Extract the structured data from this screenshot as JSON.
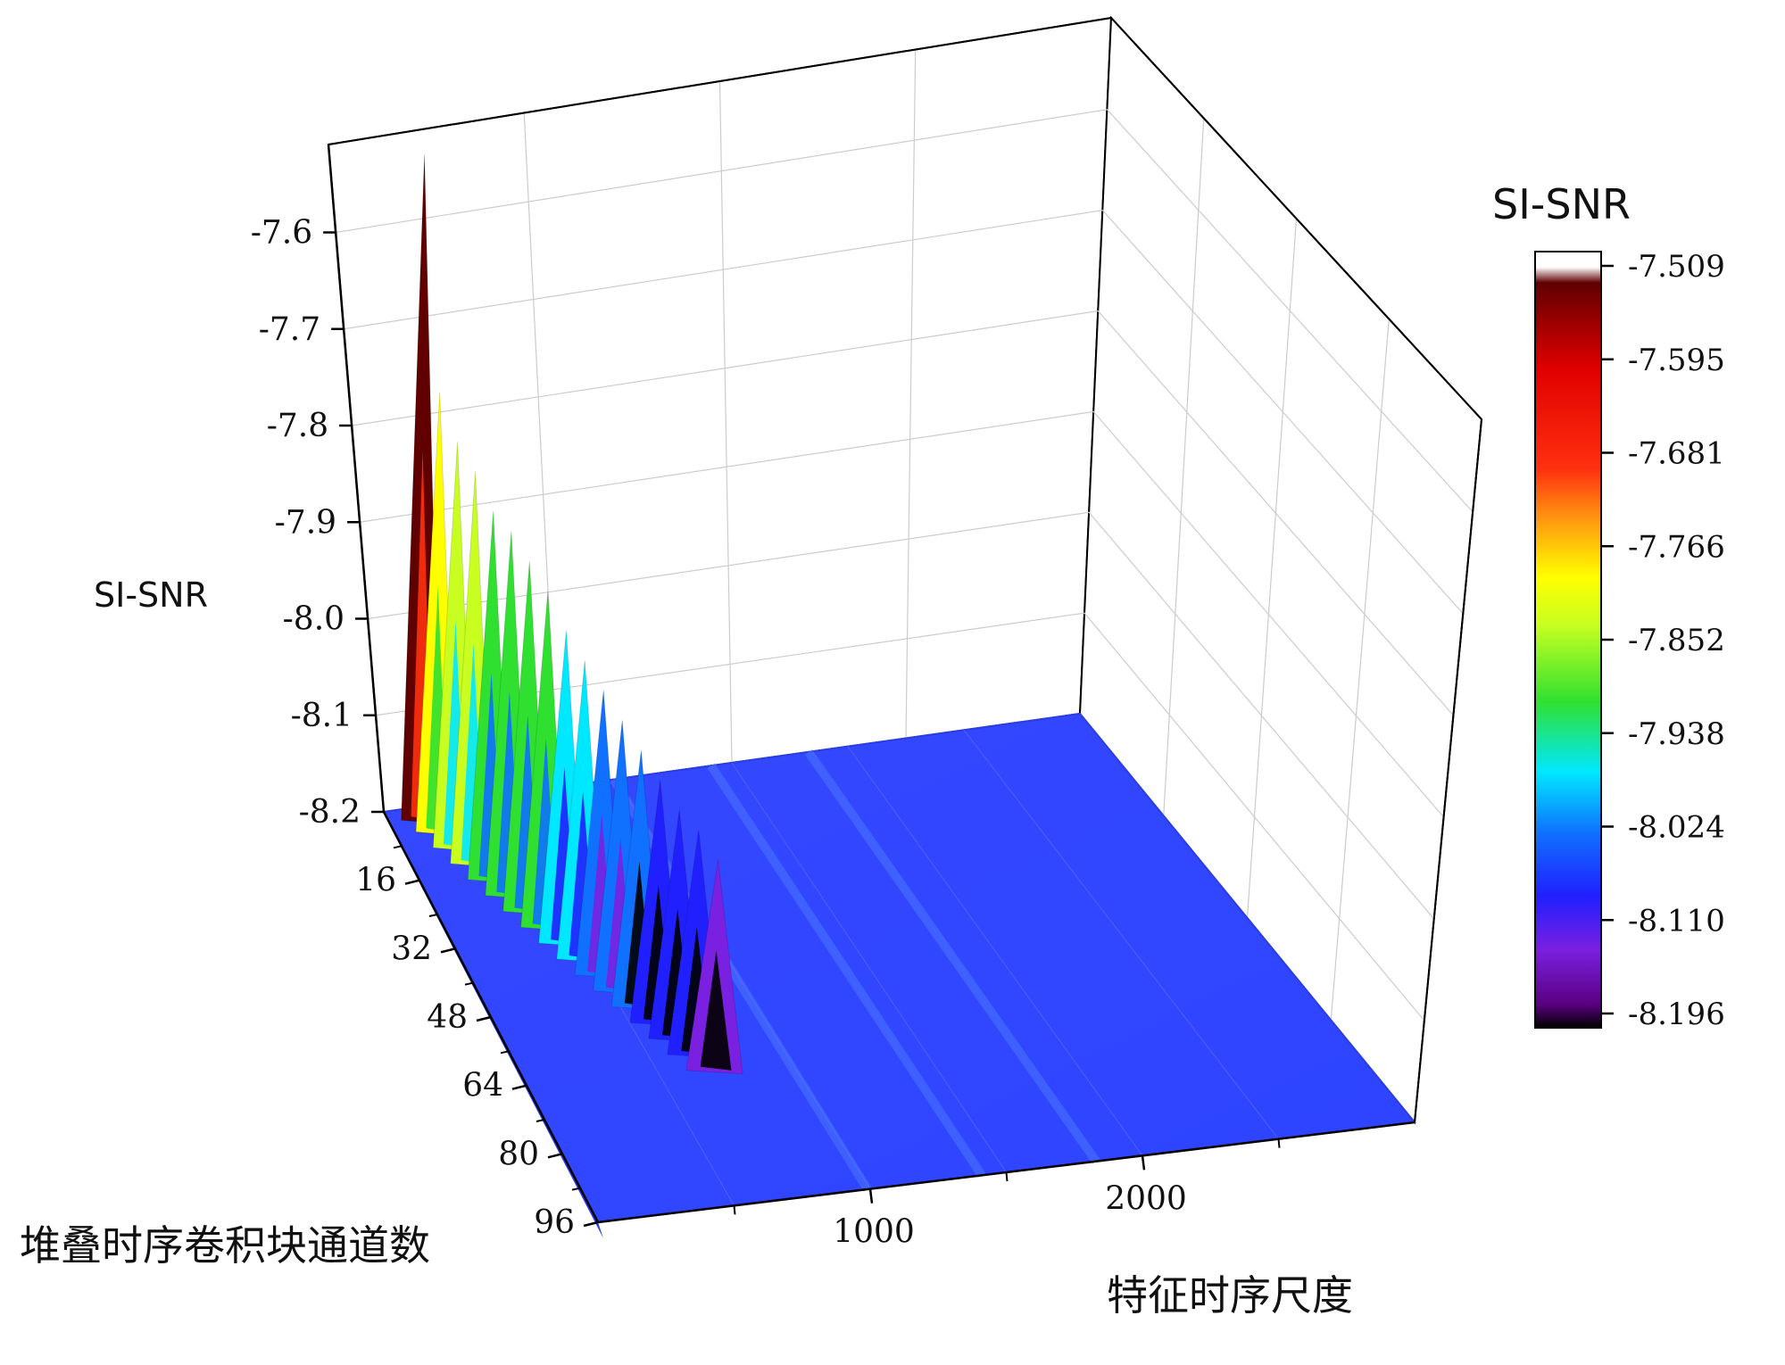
{
  "chart_data": {
    "type": "surface3d",
    "title": "",
    "zlabel": "SI-SNR",
    "xlabel": "特征时序尺度",
    "ylabel": "堆叠时序卷积块通道数",
    "colorbar_title": "SI-SNR",
    "zticks": [
      "-7.6",
      "-7.7",
      "-7.8",
      "-7.9",
      "-8.0",
      "-8.1",
      "-8.2"
    ],
    "zlim": [
      -8.2,
      -7.509
    ],
    "xticks": [
      "1000",
      "2000"
    ],
    "yticks": [
      "16",
      "32",
      "48",
      "64",
      "80",
      "96"
    ],
    "colorbar_ticks": [
      "-7.509",
      "-7.595",
      "-7.681",
      "-7.766",
      "-7.852",
      "-7.938",
      "-8.024",
      "-8.110",
      "-8.196"
    ],
    "colorbar_range": [
      -8.196,
      -7.509
    ],
    "colors": {
      "surface_base": "#2f45ff",
      "peak_red": "#ff1010",
      "peak_yellow": "#ffff00",
      "peak_green": "#30e030",
      "peak_cyan": "#00e8ff",
      "peak_blue": "#1060ff",
      "dip_purple": "#6a10c0",
      "grid": "#cccccc",
      "axis": "#000000"
    },
    "ridge": [
      {
        "y": 1,
        "x": 320,
        "z": -7.52
      },
      {
        "y": 4,
        "x": 340,
        "z": -7.76
      },
      {
        "y": 8,
        "x": 370,
        "z": -7.8
      },
      {
        "y": 12,
        "x": 400,
        "z": -7.82
      },
      {
        "y": 16,
        "x": 430,
        "z": -7.85
      },
      {
        "y": 20,
        "x": 460,
        "z": -7.86
      },
      {
        "y": 24,
        "x": 490,
        "z": -7.88
      },
      {
        "y": 28,
        "x": 520,
        "z": -7.9
      },
      {
        "y": 32,
        "x": 545,
        "z": -7.93
      },
      {
        "y": 36,
        "x": 570,
        "z": -7.95
      },
      {
        "y": 40,
        "x": 590,
        "z": -7.97
      },
      {
        "y": 44,
        "x": 610,
        "z": -7.99
      },
      {
        "y": 48,
        "x": 625,
        "z": -8.01
      },
      {
        "y": 52,
        "x": 640,
        "z": -8.03
      },
      {
        "y": 56,
        "x": 650,
        "z": -8.05
      },
      {
        "y": 60,
        "x": 660,
        "z": -8.06
      },
      {
        "y": 64,
        "x": 670,
        "z": -8.08
      }
    ]
  }
}
